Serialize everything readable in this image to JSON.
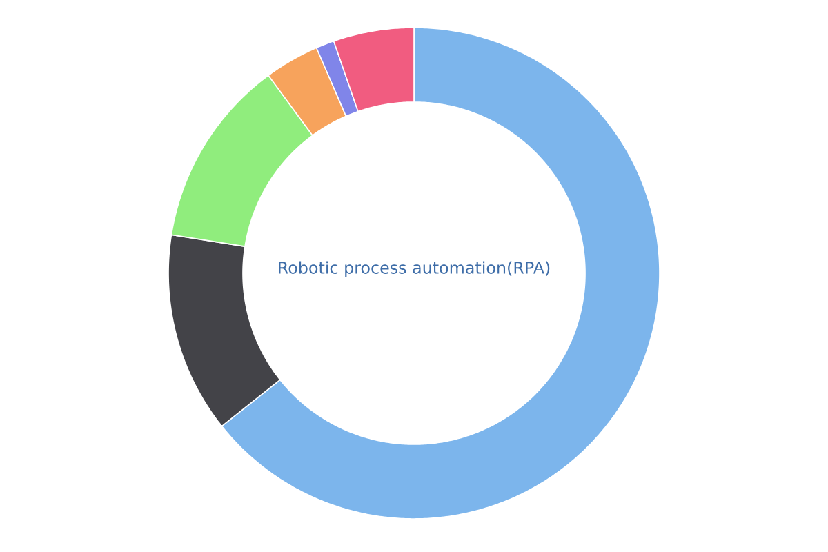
{
  "chart_data": {
    "type": "donut",
    "title": "Robotic process automation(RPA)",
    "categories": [
      null,
      null,
      null,
      null,
      null,
      null
    ],
    "values": [
      64.3,
      13.2,
      12.4,
      3.6,
      1.2,
      5.3
    ],
    "colors": [
      "#7cb5ec",
      "#434348",
      "#90ed7d",
      "#f7a35c",
      "#8085e9",
      "#f15c80"
    ]
  }
}
